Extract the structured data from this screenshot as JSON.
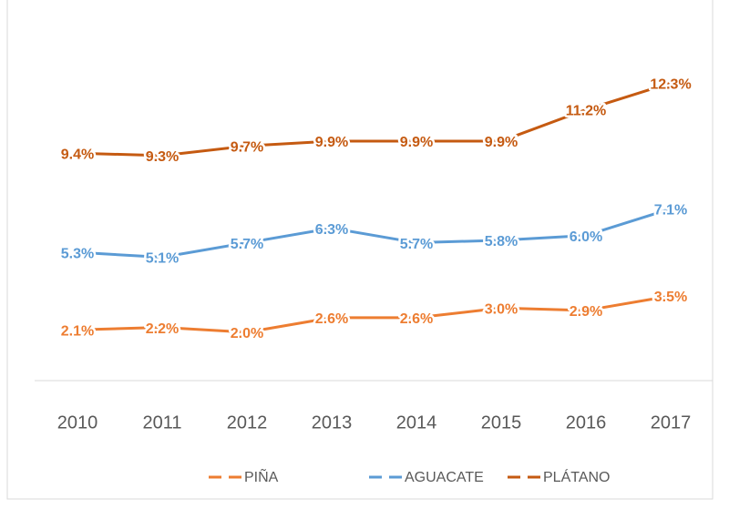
{
  "chart_data": {
    "type": "line",
    "categories": [
      "2010",
      "2011",
      "2012",
      "2013",
      "2014",
      "2015",
      "2016",
      "2017"
    ],
    "series": [
      {
        "name": "PIÑA",
        "color": "#ed7d31",
        "values": [
          2.1,
          2.2,
          2.0,
          2.6,
          2.6,
          3.0,
          2.9,
          3.5
        ],
        "value_labels": [
          "2.1%",
          "2.2%",
          "2.0%",
          "2.6%",
          "2.6%",
          "3.0%",
          "2.9%",
          "3.5%"
        ]
      },
      {
        "name": "AGUACATE",
        "color": "#5b9bd5",
        "values": [
          5.3,
          5.1,
          5.7,
          6.3,
          5.7,
          5.8,
          6.0,
          7.1
        ],
        "value_labels": [
          "5.3%",
          "5.1%",
          "5.7%",
          "6.3%",
          "5.7%",
          "5.8%",
          "6.0%",
          "7.1%"
        ]
      },
      {
        "name": "PLÁTANO",
        "color": "#c55a11",
        "values": [
          9.4,
          9.3,
          9.7,
          9.9,
          9.9,
          9.9,
          11.2,
          12.3
        ],
        "value_labels": [
          "9.4%",
          "9.3%",
          "9.7%",
          "9.9%",
          "9.9%",
          "9.9%",
          "11.2%",
          "12.3%"
        ]
      }
    ],
    "ylim": [
      0,
      14
    ],
    "legend": "bottom"
  }
}
